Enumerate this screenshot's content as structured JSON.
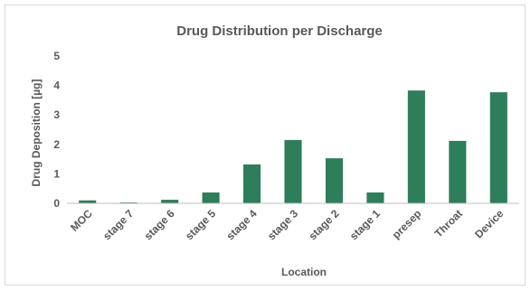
{
  "chart_data": {
    "type": "bar",
    "title": "Drug Distribution per Discharge",
    "xlabel": "Location",
    "ylabel": "Drug Deposition [µg]",
    "categories": [
      "MOC",
      "stage 7",
      "stage 6",
      "stage 5",
      "stage 4",
      "stage 3",
      "stage 2",
      "stage 1",
      "presep",
      "Throat",
      "Device"
    ],
    "values": [
      0.1,
      0.03,
      0.12,
      0.37,
      1.32,
      2.15,
      1.53,
      0.37,
      3.83,
      2.12,
      3.77
    ],
    "ylim": [
      0,
      5
    ],
    "yticks": [
      0,
      1,
      2,
      3,
      4,
      5
    ],
    "bar_color": "#2e7d5b",
    "grid": false,
    "legend": "none"
  }
}
